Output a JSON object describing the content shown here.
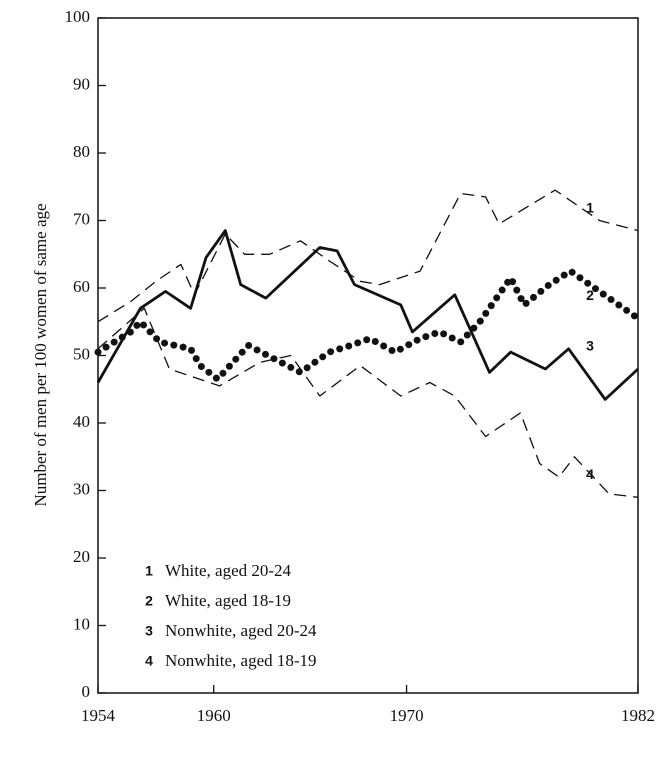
{
  "chart_data": {
    "type": "line",
    "ylabel": "Number of men per 100 women of same age",
    "xlim": [
      1954,
      1982
    ],
    "xticks": [
      1954,
      1960,
      1970,
      1982
    ],
    "ylim": [
      0,
      100
    ],
    "yticks": [
      0,
      10,
      20,
      30,
      40,
      50,
      60,
      70,
      80,
      90,
      100
    ],
    "grid": false,
    "legend": "lower left",
    "series": [
      {
        "name": "White, aged 20-24",
        "label": "1",
        "color": "#111",
        "style": "dashed",
        "x": [
          1954,
          1955.7,
          1957.0,
          1958.3,
          1959.0,
          1960.6,
          1961.6,
          1962.9,
          1964.5,
          1966.0,
          1967.6,
          1968.6,
          1970.7,
          1972.8,
          1974.1,
          1974.8,
          1977.7,
          1980.0,
          1982
        ],
        "values": [
          55,
          58,
          61,
          63.5,
          59,
          68,
          65,
          65,
          67,
          64,
          61,
          60.5,
          62.5,
          74,
          73.5,
          69.5,
          74.5,
          70,
          68.5
        ]
      },
      {
        "name": "White, aged 18-19",
        "label": "2",
        "color": "#111",
        "style": "dotted",
        "x": [
          1954,
          1955.7,
          1956.2,
          1957.2,
          1958.8,
          1959.3,
          1960.2,
          1961.8,
          1962.8,
          1964.5,
          1966.0,
          1967.1,
          1968.1,
          1969.4,
          1970.7,
          1971.7,
          1972.8,
          1973.8,
          1975.4,
          1976.1,
          1977.4,
          1978.5,
          1980.0,
          1982
        ],
        "values": [
          50.5,
          53.5,
          55,
          52,
          51,
          48.5,
          46.5,
          51.5,
          50,
          47.5,
          50.5,
          51.5,
          52.5,
          50.5,
          52.5,
          53.5,
          52,
          55,
          61.5,
          57.5,
          60.5,
          62.5,
          59.5,
          55.5
        ]
      },
      {
        "name": "Nonwhite, aged 20-24",
        "label": "3",
        "color": "#111",
        "style": "solid",
        "x": [
          1954,
          1956.2,
          1957.5,
          1958.8,
          1959.6,
          1960.6,
          1961.4,
          1962.7,
          1965.5,
          1966.4,
          1967.3,
          1969.7,
          1970.3,
          1972.5,
          1974.3,
          1975.4,
          1977.2,
          1978.4,
          1980.3,
          1982
        ],
        "values": [
          46,
          57,
          59.5,
          57,
          64.5,
          68.5,
          60.5,
          58.5,
          66,
          65.5,
          60.5,
          57.5,
          53.5,
          59,
          47.5,
          50.5,
          48,
          51,
          43.5,
          48
        ]
      },
      {
        "name": "Nonwhite, aged 18-19",
        "label": "4",
        "color": "#111",
        "style": "dashed",
        "x": [
          1954,
          1956.4,
          1957.7,
          1960.3,
          1962.4,
          1964.0,
          1965.5,
          1967.6,
          1969.7,
          1971.2,
          1972.5,
          1974.1,
          1975.9,
          1976.9,
          1977.9,
          1978.7,
          1980.5,
          1982
        ],
        "values": [
          51,
          57,
          48,
          45.5,
          49,
          50,
          44,
          48.5,
          44,
          46,
          44,
          38,
          41.5,
          34,
          32,
          35,
          29.5,
          29
        ]
      }
    ]
  }
}
